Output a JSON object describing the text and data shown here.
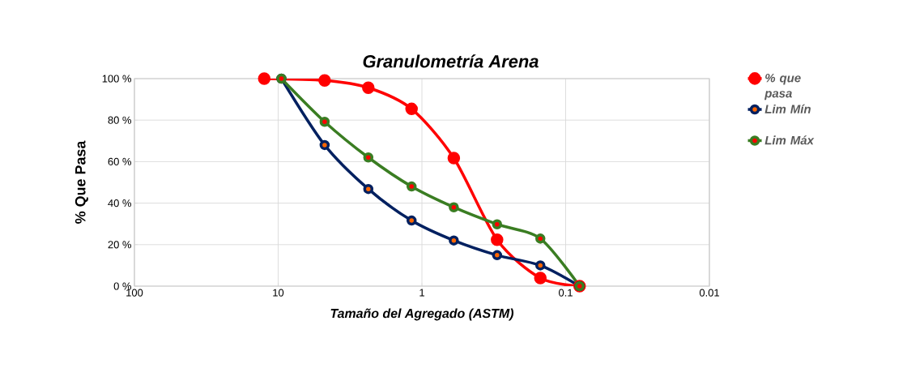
{
  "chart_data": {
    "type": "line",
    "title": "Granulometría Arena",
    "xlabel": "Tamaño del Agregado (ASTM)",
    "ylabel": "% Que Pasa",
    "log": "x",
    "xlim": [
      100,
      0.01
    ],
    "ylim": [
      0,
      100
    ],
    "xticks": [
      100,
      10,
      1,
      0.1,
      0.01
    ],
    "yticks": [
      {
        "value": 0,
        "label": "0 %"
      },
      {
        "value": 20,
        "label": "20 %"
      },
      {
        "value": 40,
        "label": "40 %"
      },
      {
        "value": 60,
        "label": "60 %"
      },
      {
        "value": 80,
        "label": "80 %"
      },
      {
        "value": 100,
        "label": "100 %"
      }
    ],
    "grid": true,
    "legend": "right",
    "marker": "circle",
    "series": [
      {
        "name": "% que pasa",
        "color": "#ff0000",
        "x": [
          12.5,
          4.75,
          2.36,
          1.18,
          0.6,
          0.3,
          0.15,
          0.08
        ],
        "values": [
          100,
          99.1,
          95.6,
          85.4,
          61.7,
          22.4,
          3.9,
          0
        ]
      },
      {
        "name": "Lim Mín",
        "color": "#002060",
        "x": [
          9.5,
          4.75,
          2.36,
          1.18,
          0.6,
          0.3,
          0.15,
          0.08
        ],
        "values": [
          100,
          68,
          46.8,
          31.6,
          22,
          14.9,
          10,
          0
        ]
      },
      {
        "name": "Lim Máx",
        "color": "#3a7d22",
        "x": [
          9.5,
          4.75,
          2.36,
          1.18,
          0.6,
          0.3,
          0.15,
          0.08
        ],
        "values": [
          100,
          79.2,
          62,
          48,
          38,
          29.8,
          22.9,
          0
        ]
      }
    ]
  }
}
